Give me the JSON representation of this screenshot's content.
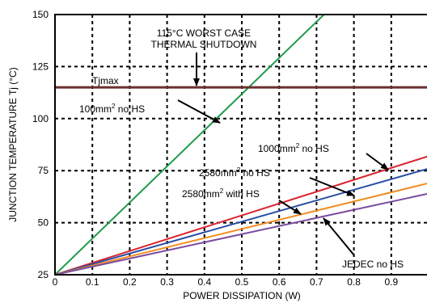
{
  "chart_data": {
    "type": "line",
    "xlabel": "POWER DISSIPATION (W)",
    "ylabel_main": "JUNCTION TEMPERATURE Tj ",
    "ylabel_unit": "(°C)",
    "xlim": [
      0,
      1.0
    ],
    "ylim": [
      25,
      150
    ],
    "x_ticks": [
      0,
      0.1,
      0.2,
      0.3,
      0.4,
      0.5,
      0.6,
      0.7,
      0.8,
      0.9
    ],
    "x_tick_labels": [
      "0",
      "0.1",
      "0.2",
      "0.3",
      "0.4",
      "0.5",
      "0.6",
      "0.7",
      "0.8",
      "0.9"
    ],
    "y_ticks": [
      25,
      50,
      75,
      100,
      125,
      150
    ],
    "y_tick_labels": [
      "25",
      "50",
      "75",
      "100",
      "125",
      "150"
    ],
    "grid": true,
    "tjmax": {
      "label": "Tjmax",
      "value": 115,
      "color": "#6b2f2f"
    },
    "series": [
      {
        "color": "#1f9a4a",
        "x": [
          0,
          0.72
        ],
        "y": [
          25,
          150
        ]
      },
      {
        "color": "#d9232e",
        "x": [
          0,
          1.0
        ],
        "y": [
          25,
          82
        ]
      },
      {
        "color": "#2a4fa3",
        "x": [
          0,
          1.0
        ],
        "y": [
          25,
          76
        ]
      },
      {
        "color": "#f28c1e",
        "x": [
          0,
          1.0
        ],
        "y": [
          25,
          69
        ]
      },
      {
        "color": "#7a4ca0",
        "x": [
          0,
          1.0
        ],
        "y": [
          25,
          64
        ]
      }
    ],
    "annotations": {
      "shutdown_line1": "115°C WORST CASE",
      "shutdown_line2": "THERMAL SHUTDOWN",
      "hs100_main": "100mm",
      "hs100_sup": "2",
      "hs100_rest": " no HS",
      "hs1000_main": "1000mm",
      "hs1000_sup": "2",
      "hs1000_rest": " no HS",
      "hs2580_main": "2580mm",
      "hs2580_sup": "2",
      "hs2580_rest": " no HS",
      "hs2580w_main": "2580mm",
      "hs2580w_sup": "2",
      "hs2580w_rest": " with HS",
      "jedec": "JEDEC no HS"
    }
  }
}
